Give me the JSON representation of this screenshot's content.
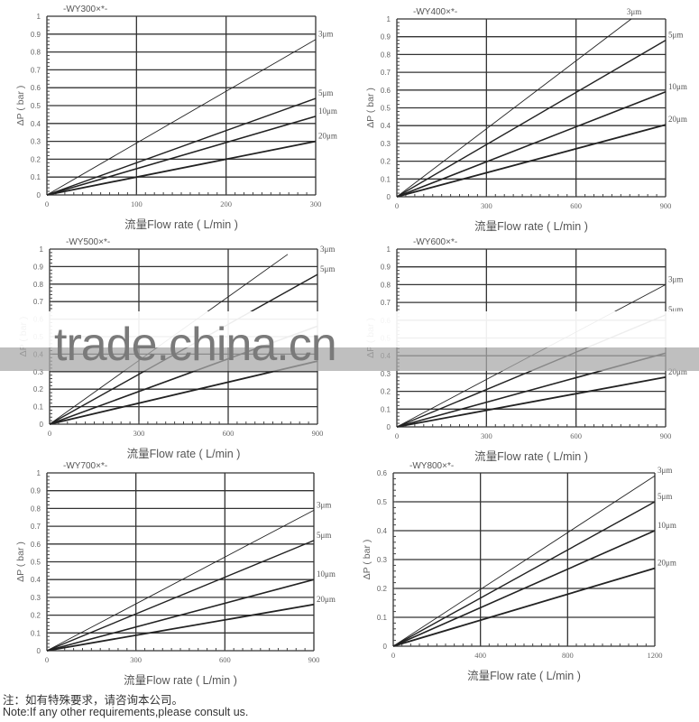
{
  "chart_data": [
    {
      "type": "line",
      "title": "-WY300×*-",
      "xlabel": "流量Flow rate ( L/min )",
      "ylabel": "ΔP ( bar )",
      "xlim": [
        0,
        300
      ],
      "ylim": [
        0,
        1
      ],
      "xticks": [
        "0",
        "100",
        "200",
        "300"
      ],
      "yticks": [
        "0",
        "0.1",
        "0.2",
        "0.3",
        "0.4",
        "0.5",
        "0.6",
        "0.7",
        "0.8",
        "0.9",
        "1"
      ],
      "grid": true,
      "series": [
        {
          "name": "3μm",
          "x": [
            0,
            300
          ],
          "y": [
            0,
            0.87
          ]
        },
        {
          "name": "5μm",
          "x": [
            0,
            300
          ],
          "y": [
            0,
            0.54
          ]
        },
        {
          "name": "10μm",
          "x": [
            0,
            300
          ],
          "y": [
            0,
            0.44
          ]
        },
        {
          "name": "20μm",
          "x": [
            0,
            300
          ],
          "y": [
            0,
            0.3
          ]
        }
      ]
    },
    {
      "type": "line",
      "title": "-WY400×*-",
      "xlabel": "流量Flow rate ( L/min )",
      "ylabel": "ΔP ( bar )",
      "xlim": [
        0,
        900
      ],
      "ylim": [
        0,
        1
      ],
      "xticks": [
        "0",
        "300",
        "600",
        "900"
      ],
      "yticks": [
        "0",
        "0.1",
        "0.2",
        "0.3",
        "0.4",
        "0.5",
        "0.6",
        "0.7",
        "0.8",
        "0.9",
        "1"
      ],
      "grid": true,
      "series": [
        {
          "name": "3μm",
          "x": [
            0,
            785
          ],
          "y": [
            0,
            1.0
          ]
        },
        {
          "name": "5μm",
          "x": [
            0,
            900
          ],
          "y": [
            0,
            0.88
          ]
        },
        {
          "name": "10μm",
          "x": [
            0,
            900
          ],
          "y": [
            0,
            0.59
          ]
        },
        {
          "name": "20μm",
          "x": [
            0,
            900
          ],
          "y": [
            0,
            0.405
          ]
        }
      ]
    },
    {
      "type": "line",
      "title": "-WY500×*-",
      "xlabel": "流量Flow rate ( L/min )",
      "ylabel": "ΔP ( bar )",
      "xlim": [
        0,
        900
      ],
      "ylim": [
        0,
        1
      ],
      "xticks": [
        "0",
        "300",
        "600",
        "900"
      ],
      "yticks": [
        "0",
        "0.1",
        "0.2",
        "0.3",
        "0.4",
        "0.5",
        "0.6",
        "0.7",
        "0.8",
        "0.9",
        "1"
      ],
      "grid": true,
      "series": [
        {
          "name": "3μm",
          "x": [
            0,
            800
          ],
          "y": [
            0,
            0.97
          ]
        },
        {
          "name": "5μm",
          "x": [
            0,
            900
          ],
          "y": [
            0,
            0.855
          ]
        },
        {
          "x": [
            0,
            900
          ],
          "y": [
            0,
            0.56
          ]
        },
        {
          "x": [
            0,
            900
          ],
          "y": [
            0,
            0.36
          ]
        }
      ]
    },
    {
      "type": "line",
      "title": "-WY600×*-",
      "xlabel": "流量Flow rate ( L/min )",
      "ylabel": "ΔP ( bar )",
      "xlim": [
        0,
        900
      ],
      "ylim": [
        0,
        1
      ],
      "xticks": [
        "0",
        "300",
        "600",
        "900"
      ],
      "yticks": [
        "0",
        "0.1",
        "0.2",
        "0.3",
        "0.4",
        "0.5",
        "0.6",
        "0.7",
        "0.8",
        "0.9",
        "1"
      ],
      "grid": true,
      "series": [
        {
          "name": "3μm",
          "x": [
            0,
            900
          ],
          "y": [
            0,
            0.8
          ]
        },
        {
          "name": "5μm",
          "x": [
            0,
            900
          ],
          "y": [
            0,
            0.63
          ]
        },
        {
          "x": [
            0,
            900
          ],
          "y": [
            0,
            0.415
          ]
        },
        {
          "name": "20μm",
          "x": [
            0,
            900
          ],
          "y": [
            0,
            0.28
          ]
        }
      ]
    },
    {
      "type": "line",
      "title": "-WY700×*-",
      "xlabel": "流量Flow rate ( L/min )",
      "ylabel": "ΔP ( bar )",
      "xlim": [
        0,
        900
      ],
      "ylim": [
        0,
        1
      ],
      "xticks": [
        "0",
        "300",
        "600",
        "900"
      ],
      "yticks": [
        "0",
        "0.1",
        "0.2",
        "0.3",
        "0.4",
        "0.5",
        "0.6",
        "0.7",
        "0.8",
        "0.9",
        "1"
      ],
      "grid": true,
      "series": [
        {
          "name": "3μm",
          "x": [
            0,
            900
          ],
          "y": [
            0,
            0.79
          ]
        },
        {
          "name": "5μm",
          "x": [
            0,
            900
          ],
          "y": [
            0,
            0.62
          ]
        },
        {
          "name": "10μm",
          "x": [
            0,
            900
          ],
          "y": [
            0,
            0.4
          ]
        },
        {
          "name": "20μm",
          "x": [
            0,
            900
          ],
          "y": [
            0,
            0.26
          ]
        }
      ]
    },
    {
      "type": "line",
      "title": "-WY800×*-",
      "xlabel": "流量Flow rate ( L/min )",
      "ylabel": "ΔP ( bar )",
      "xlim": [
        0,
        1200
      ],
      "ylim": [
        0,
        0.6
      ],
      "xticks": [
        "0",
        "400",
        "800",
        "1200"
      ],
      "yticks": [
        "0",
        "0.1",
        "0.2",
        "0.3",
        "0.4",
        "0.5",
        "0.6"
      ],
      "grid": true,
      "series": [
        {
          "name": "3μm",
          "x": [
            0,
            1200
          ],
          "y": [
            0,
            0.59
          ]
        },
        {
          "name": "5μm",
          "x": [
            0,
            1200
          ],
          "y": [
            0,
            0.5
          ]
        },
        {
          "name": "10μm",
          "x": [
            0,
            1200
          ],
          "y": [
            0,
            0.4
          ]
        },
        {
          "name": "20μm",
          "x": [
            0,
            1200
          ],
          "y": [
            0,
            0.27
          ]
        }
      ]
    }
  ],
  "notes": {
    "cn": "注：如有特殊要求，请咨询本公司。",
    "en": "Note:If any other requirements,please consult us."
  },
  "watermark": "trade.china.cn",
  "colors": {
    "line": "#222222",
    "grid": "#333333",
    "text": "#555555"
  }
}
